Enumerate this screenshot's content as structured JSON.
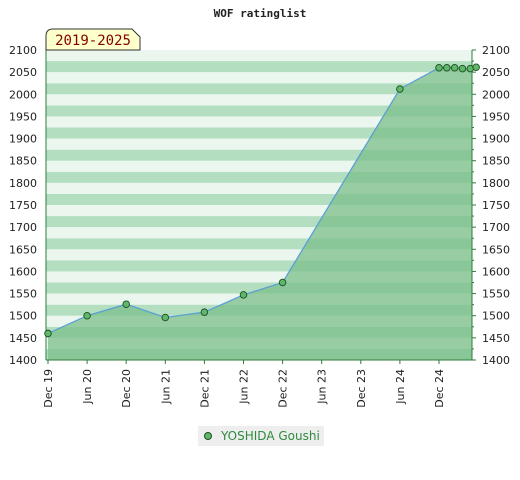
{
  "chart_data": {
    "type": "area",
    "title": "WOF ratinglist",
    "period_label": "2019-2025",
    "xlabel": "",
    "ylabel": "",
    "ylim": [
      1400,
      2100
    ],
    "yticks": [
      1400,
      1450,
      1500,
      1550,
      1600,
      1650,
      1700,
      1750,
      1800,
      1850,
      1900,
      1950,
      2000,
      2050,
      2100
    ],
    "x_tick_labels": [
      "Dec 19",
      "Jun 20",
      "Dec 20",
      "Jun 21",
      "Dec 21",
      "Jun 22",
      "Dec 22",
      "Jun 23",
      "Dec 23",
      "Jun 24",
      "Dec 24"
    ],
    "grid": true,
    "legend_position": "bottom-center",
    "colors": {
      "line": "#5a9fd4",
      "marker_fill": "#5fb76a",
      "marker_stroke": "#1f4f24",
      "area": "#7cbf8b",
      "band_dark": "#b3dfc0",
      "band_light": "#eaf6ee",
      "legend_text": "#2e8b3e",
      "badge_fill": "#ffffcc",
      "badge_text": "#800000"
    },
    "series": [
      {
        "name": "YOSHIDA Goushi",
        "points": [
          {
            "x": 0.0,
            "y": 1460
          },
          {
            "x": 1.0,
            "y": 1500
          },
          {
            "x": 2.0,
            "y": 1526
          },
          {
            "x": 3.0,
            "y": 1496
          },
          {
            "x": 4.0,
            "y": 1508
          },
          {
            "x": 5.0,
            "y": 1547
          },
          {
            "x": 6.0,
            "y": 1575
          },
          {
            "x": 9.0,
            "y": 2012
          },
          {
            "x": 10.0,
            "y": 2060
          },
          {
            "x": 10.2,
            "y": 2060
          },
          {
            "x": 10.4,
            "y": 2060
          },
          {
            "x": 10.6,
            "y": 2058
          },
          {
            "x": 10.8,
            "y": 2058
          },
          {
            "x": 10.95,
            "y": 2061
          }
        ]
      }
    ]
  }
}
